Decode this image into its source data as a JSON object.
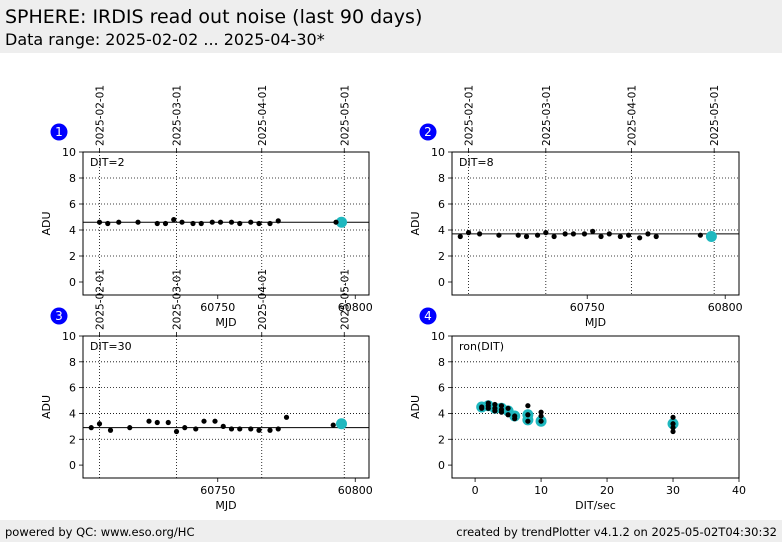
{
  "header": {
    "title": "SPHERE: IRDIS read out noise (last 90 days)",
    "subtitle": "Data range: 2025-02-02 ... 2025-04-30*"
  },
  "footer": {
    "left": "powered by QC: www.eso.org/HC",
    "right": "created by trendPlotter v4.1.2 on 2025-05-02T04:30:32"
  },
  "colors": {
    "point": "#000000",
    "highlight": "#1fb8bf",
    "badge": "#0000ff",
    "badge_text": "#ffffff",
    "header_bg": "#eeeeee"
  },
  "chart_data": [
    {
      "type": "scatter",
      "badge": "1",
      "annotation": "DIT=2",
      "xlabel": "MJD",
      "ylabel": "ADU",
      "xlim": [
        60701,
        60805
      ],
      "ylim": [
        -1,
        10
      ],
      "xticks": [
        60750,
        60800
      ],
      "yticks": [
        0,
        2,
        4,
        6,
        8,
        10
      ],
      "date_axis": [
        {
          "label": "2025-02-01",
          "mjd": 60707
        },
        {
          "label": "2025-03-01",
          "mjd": 60735
        },
        {
          "label": "2025-04-01",
          "mjd": 60766
        },
        {
          "label": "2025-05-01",
          "mjd": 60796
        }
      ],
      "hline": 4.6,
      "points": {
        "x": [
          60707,
          60710,
          60714,
          60721,
          60728,
          60731,
          60734,
          60737,
          60741,
          60744,
          60748,
          60751,
          60755,
          60758,
          60762,
          60765,
          60769,
          60772,
          60793
        ],
        "y": [
          4.6,
          4.5,
          4.6,
          4.6,
          4.5,
          4.5,
          4.8,
          4.6,
          4.5,
          4.5,
          4.6,
          4.6,
          4.6,
          4.5,
          4.6,
          4.5,
          4.5,
          4.7,
          4.6
        ]
      },
      "highlight": {
        "x": [
          60795
        ],
        "y": [
          4.6
        ]
      }
    },
    {
      "type": "scatter",
      "badge": "2",
      "annotation": "DIT=8",
      "xlabel": "MJD",
      "ylabel": "ADU",
      "xlim": [
        60701,
        60805
      ],
      "ylim": [
        -1,
        10
      ],
      "xticks": [
        60750,
        60800
      ],
      "yticks": [
        0,
        2,
        4,
        6,
        8,
        10
      ],
      "date_axis": [
        {
          "label": "2025-02-01",
          "mjd": 60707
        },
        {
          "label": "2025-03-01",
          "mjd": 60735
        },
        {
          "label": "2025-04-01",
          "mjd": 60766
        },
        {
          "label": "2025-05-01",
          "mjd": 60796
        }
      ],
      "hline": 3.7,
      "points": {
        "x": [
          60704,
          60707,
          60711,
          60718,
          60725,
          60728,
          60732,
          60735,
          60738,
          60742,
          60745,
          60749,
          60752,
          60755,
          60758,
          60762,
          60765,
          60769,
          60772,
          60775,
          60791
        ],
        "y": [
          3.5,
          3.8,
          3.7,
          3.6,
          3.6,
          3.5,
          3.6,
          3.8,
          3.5,
          3.7,
          3.7,
          3.7,
          3.9,
          3.5,
          3.7,
          3.5,
          3.6,
          3.4,
          3.7,
          3.5,
          3.6
        ]
      },
      "highlight": {
        "x": [
          60795
        ],
        "y": [
          3.5
        ]
      }
    },
    {
      "type": "scatter",
      "badge": "3",
      "annotation": "DIT=30",
      "xlabel": "MJD",
      "ylabel": "ADU",
      "xlim": [
        60701,
        60805
      ],
      "ylim": [
        -1,
        10
      ],
      "xticks": [
        60750,
        60800
      ],
      "yticks": [
        0,
        2,
        4,
        6,
        8,
        10
      ],
      "date_axis": [
        {
          "label": "2025-02-01",
          "mjd": 60707
        },
        {
          "label": "2025-03-01",
          "mjd": 60735
        },
        {
          "label": "2025-04-01",
          "mjd": 60766
        },
        {
          "label": "2025-05-01",
          "mjd": 60796
        }
      ],
      "hline": 2.9,
      "points": {
        "x": [
          60704,
          60707,
          60711,
          60718,
          60725,
          60728,
          60732,
          60735,
          60738,
          60742,
          60745,
          60749,
          60752,
          60755,
          60758,
          60762,
          60765,
          60769,
          60772,
          60775,
          60792
        ],
        "y": [
          2.9,
          3.2,
          2.7,
          2.9,
          3.4,
          3.3,
          3.3,
          2.6,
          2.9,
          2.8,
          3.4,
          3.4,
          3.0,
          2.8,
          2.8,
          2.8,
          2.7,
          2.7,
          2.8,
          3.7,
          3.1
        ]
      },
      "highlight": {
        "x": [
          60795
        ],
        "y": [
          3.2
        ]
      }
    },
    {
      "type": "scatter",
      "badge": "4",
      "annotation": "ron(DIT)",
      "xlabel": "DIT/sec",
      "ylabel": "ADU",
      "xlim": [
        -3.5,
        40
      ],
      "ylim": [
        -1,
        10
      ],
      "xticks": [
        0,
        10,
        20,
        30,
        40
      ],
      "yticks": [
        0,
        2,
        4,
        6,
        8,
        10
      ],
      "points": {
        "x": [
          1,
          1,
          2,
          2,
          2,
          3,
          3,
          3,
          4,
          4,
          4,
          5,
          5,
          6,
          6,
          8,
          8,
          8,
          10,
          10,
          10,
          30,
          30,
          30,
          30
        ],
        "y": [
          4.5,
          4.4,
          4.8,
          4.6,
          4.4,
          4.7,
          4.4,
          4.2,
          4.6,
          4.3,
          4.1,
          4.4,
          3.9,
          3.8,
          3.6,
          4.6,
          3.9,
          3.4,
          4.1,
          3.8,
          3.4,
          3.7,
          3.2,
          2.9,
          2.6
        ]
      },
      "highlight": {
        "x": [
          1,
          2,
          3,
          4,
          5,
          6,
          8,
          8,
          10,
          30
        ],
        "y": [
          4.5,
          4.6,
          4.4,
          4.4,
          4.2,
          3.8,
          3.9,
          3.5,
          3.4,
          3.2
        ]
      }
    }
  ]
}
